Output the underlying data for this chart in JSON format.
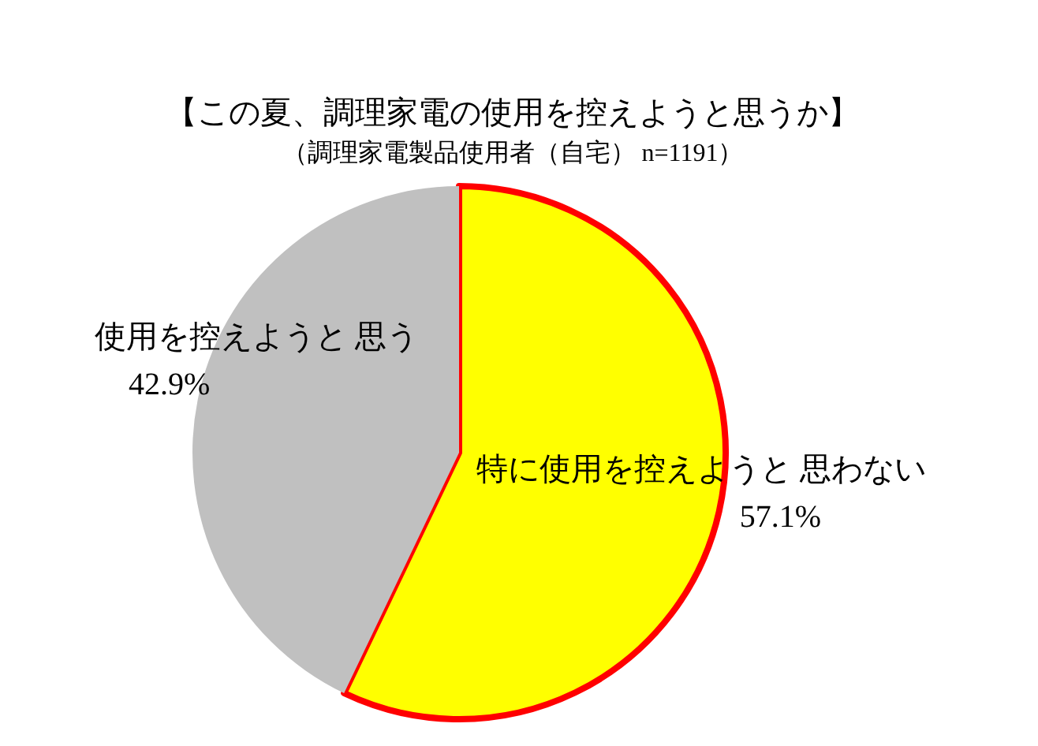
{
  "chart_data": {
    "type": "pie",
    "title": "【この夏、調理家電の使用を控えようと思うか】",
    "subtitle": "（調理家電製品使用者（自宅） n=1191）",
    "categories": [
      "特に使用を控えようと 思わない",
      "使用を控えようと 思う"
    ],
    "values": [
      57.1,
      42.9
    ],
    "colors": [
      "#ffff00",
      "#c0c0c0"
    ],
    "value_labels": [
      "57.1%",
      "42.9%"
    ]
  }
}
